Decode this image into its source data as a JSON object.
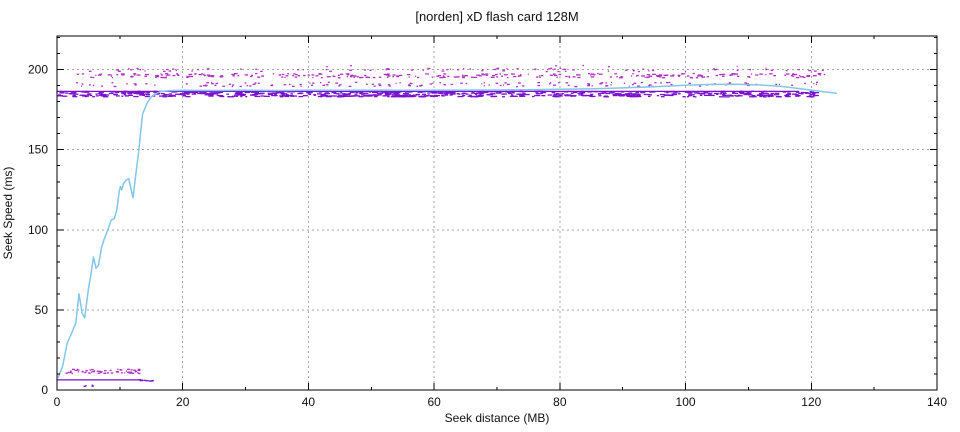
{
  "title": "[norden] xD flash card 128M",
  "chart_data": {
    "type": "scatter",
    "title": "[norden] xD flash card 128M",
    "xlabel": "Seek distance (MB)",
    "ylabel": "Seek Speed (ms)",
    "xlim": [
      0,
      140
    ],
    "ylim": [
      0,
      221
    ],
    "xticks": [
      0,
      20,
      40,
      60,
      80,
      100,
      120,
      140
    ],
    "yticks": [
      0,
      50,
      100,
      150,
      200
    ],
    "x_minor_step": 10,
    "y_minor_step": 10,
    "grid": true,
    "legend": "none",
    "colors": {
      "background": "#ffffff",
      "axis": "#000000",
      "grid": "#a6a6a6",
      "samples_magenta": "#b02fc3",
      "samples_violet": "#7b11cf",
      "average": "#82c6e8"
    },
    "scatter_bands": [
      {
        "name": "seek-samples-200ms-row",
        "seed": 11,
        "x_range": [
          2,
          122.5
        ],
        "y_range": [
          199.2,
          201.3
        ],
        "count": 85,
        "w_range": [
          1,
          3
        ],
        "color": "samples_magenta"
      },
      {
        "name": "seek-samples-outliers-203ms",
        "seed": 12,
        "x_range": [
          14,
          114
        ],
        "y_range": [
          202.2,
          203.4
        ],
        "count": 6,
        "w_range": [
          1,
          2
        ],
        "color": "samples_magenta"
      },
      {
        "name": "seek-samples-196ms-row",
        "seed": 13,
        "x_range": [
          3,
          122.5
        ],
        "y_range": [
          195.3,
          198.0
        ],
        "count": 280,
        "w_range": [
          1,
          4
        ],
        "color": "samples_magenta"
      },
      {
        "name": "seek-samples-191ms-row",
        "seed": 14,
        "x_range": [
          3,
          121
        ],
        "y_range": [
          189.8,
          192.5
        ],
        "count": 150,
        "w_range": [
          1,
          3
        ],
        "color": "samples_magenta"
      },
      {
        "name": "seek-samples-186ms-band",
        "seed": 15,
        "x_range": [
          0,
          120.5
        ],
        "y_range": [
          183.4,
          186.9
        ],
        "count": 720,
        "w_range": [
          2,
          6
        ],
        "color": "samples_violet"
      },
      {
        "name": "seek-samples-12ms-row",
        "seed": 16,
        "x_range": [
          0.4,
          13.3
        ],
        "y_range": [
          10.6,
          13.4
        ],
        "count": 60,
        "w_range": [
          1,
          3
        ],
        "color": "samples_magenta"
      },
      {
        "name": "seek-samples-3ms-dots",
        "seed": 17,
        "x_range": [
          3.8,
          6.3
        ],
        "y_range": [
          2.6,
          3.6
        ],
        "count": 6,
        "w_range": [
          1,
          2
        ],
        "color": "samples_violet"
      },
      {
        "name": "seek-samples-6ms-tail",
        "seed": 18,
        "x_range": [
          12.6,
          15.4
        ],
        "y_range": [
          5.8,
          6.8
        ],
        "count": 9,
        "w_range": [
          2,
          4
        ],
        "color": "samples_violet"
      }
    ],
    "lines": [
      {
        "name": "median-seek-line-high",
        "color": "samples_violet",
        "width": 1.3,
        "points": [
          [
            0,
            186.4
          ],
          [
            118,
            186.4
          ]
        ]
      },
      {
        "name": "median-seek-line-low",
        "color": "samples_violet",
        "width": 1.3,
        "points": [
          [
            0,
            6.3
          ],
          [
            13.2,
            6.3
          ]
        ]
      },
      {
        "name": "average-seek-line",
        "color": "average",
        "width": 1.5,
        "points": [
          [
            0.2,
            8
          ],
          [
            0.9,
            15
          ],
          [
            1.6,
            29
          ],
          [
            2.5,
            37
          ],
          [
            3.0,
            42
          ],
          [
            3.5,
            60
          ],
          [
            4.0,
            48
          ],
          [
            4.4,
            45
          ],
          [
            5.0,
            63
          ],
          [
            5.4,
            72
          ],
          [
            5.8,
            83
          ],
          [
            6.2,
            76
          ],
          [
            6.6,
            78
          ],
          [
            7.1,
            89
          ],
          [
            7.5,
            94
          ],
          [
            8.1,
            100
          ],
          [
            8.6,
            106
          ],
          [
            9.1,
            107
          ],
          [
            9.5,
            112
          ],
          [
            9.9,
            124
          ],
          [
            10.1,
            127
          ],
          [
            10.3,
            125
          ],
          [
            10.6,
            129
          ],
          [
            11.0,
            131
          ],
          [
            11.4,
            132
          ],
          [
            12.1,
            120
          ],
          [
            12.4,
            130
          ],
          [
            13.0,
            149
          ],
          [
            13.6,
            172
          ],
          [
            14.3,
            179
          ],
          [
            15.0,
            183
          ],
          [
            15.7,
            185
          ],
          [
            16.5,
            186.3
          ],
          [
            18,
            186.9
          ],
          [
            20,
            187.1
          ],
          [
            25,
            187.0
          ],
          [
            30,
            187.2
          ],
          [
            35,
            187.0
          ],
          [
            40,
            187.2
          ],
          [
            45,
            187.1
          ],
          [
            50,
            187.2
          ],
          [
            55,
            187.1
          ],
          [
            60,
            187.2
          ],
          [
            65,
            187.2
          ],
          [
            70,
            187.3
          ],
          [
            75,
            187.5
          ],
          [
            80,
            187.7
          ],
          [
            85,
            188.0
          ],
          [
            90,
            188.6
          ],
          [
            95,
            189.3
          ],
          [
            100,
            190.2
          ],
          [
            104,
            190.8
          ],
          [
            108,
            190.9
          ],
          [
            112,
            190.4
          ],
          [
            115,
            189.6
          ],
          [
            118,
            188.2
          ],
          [
            120,
            187.2
          ],
          [
            122,
            186.2
          ],
          [
            124,
            185.2
          ]
        ]
      }
    ]
  }
}
